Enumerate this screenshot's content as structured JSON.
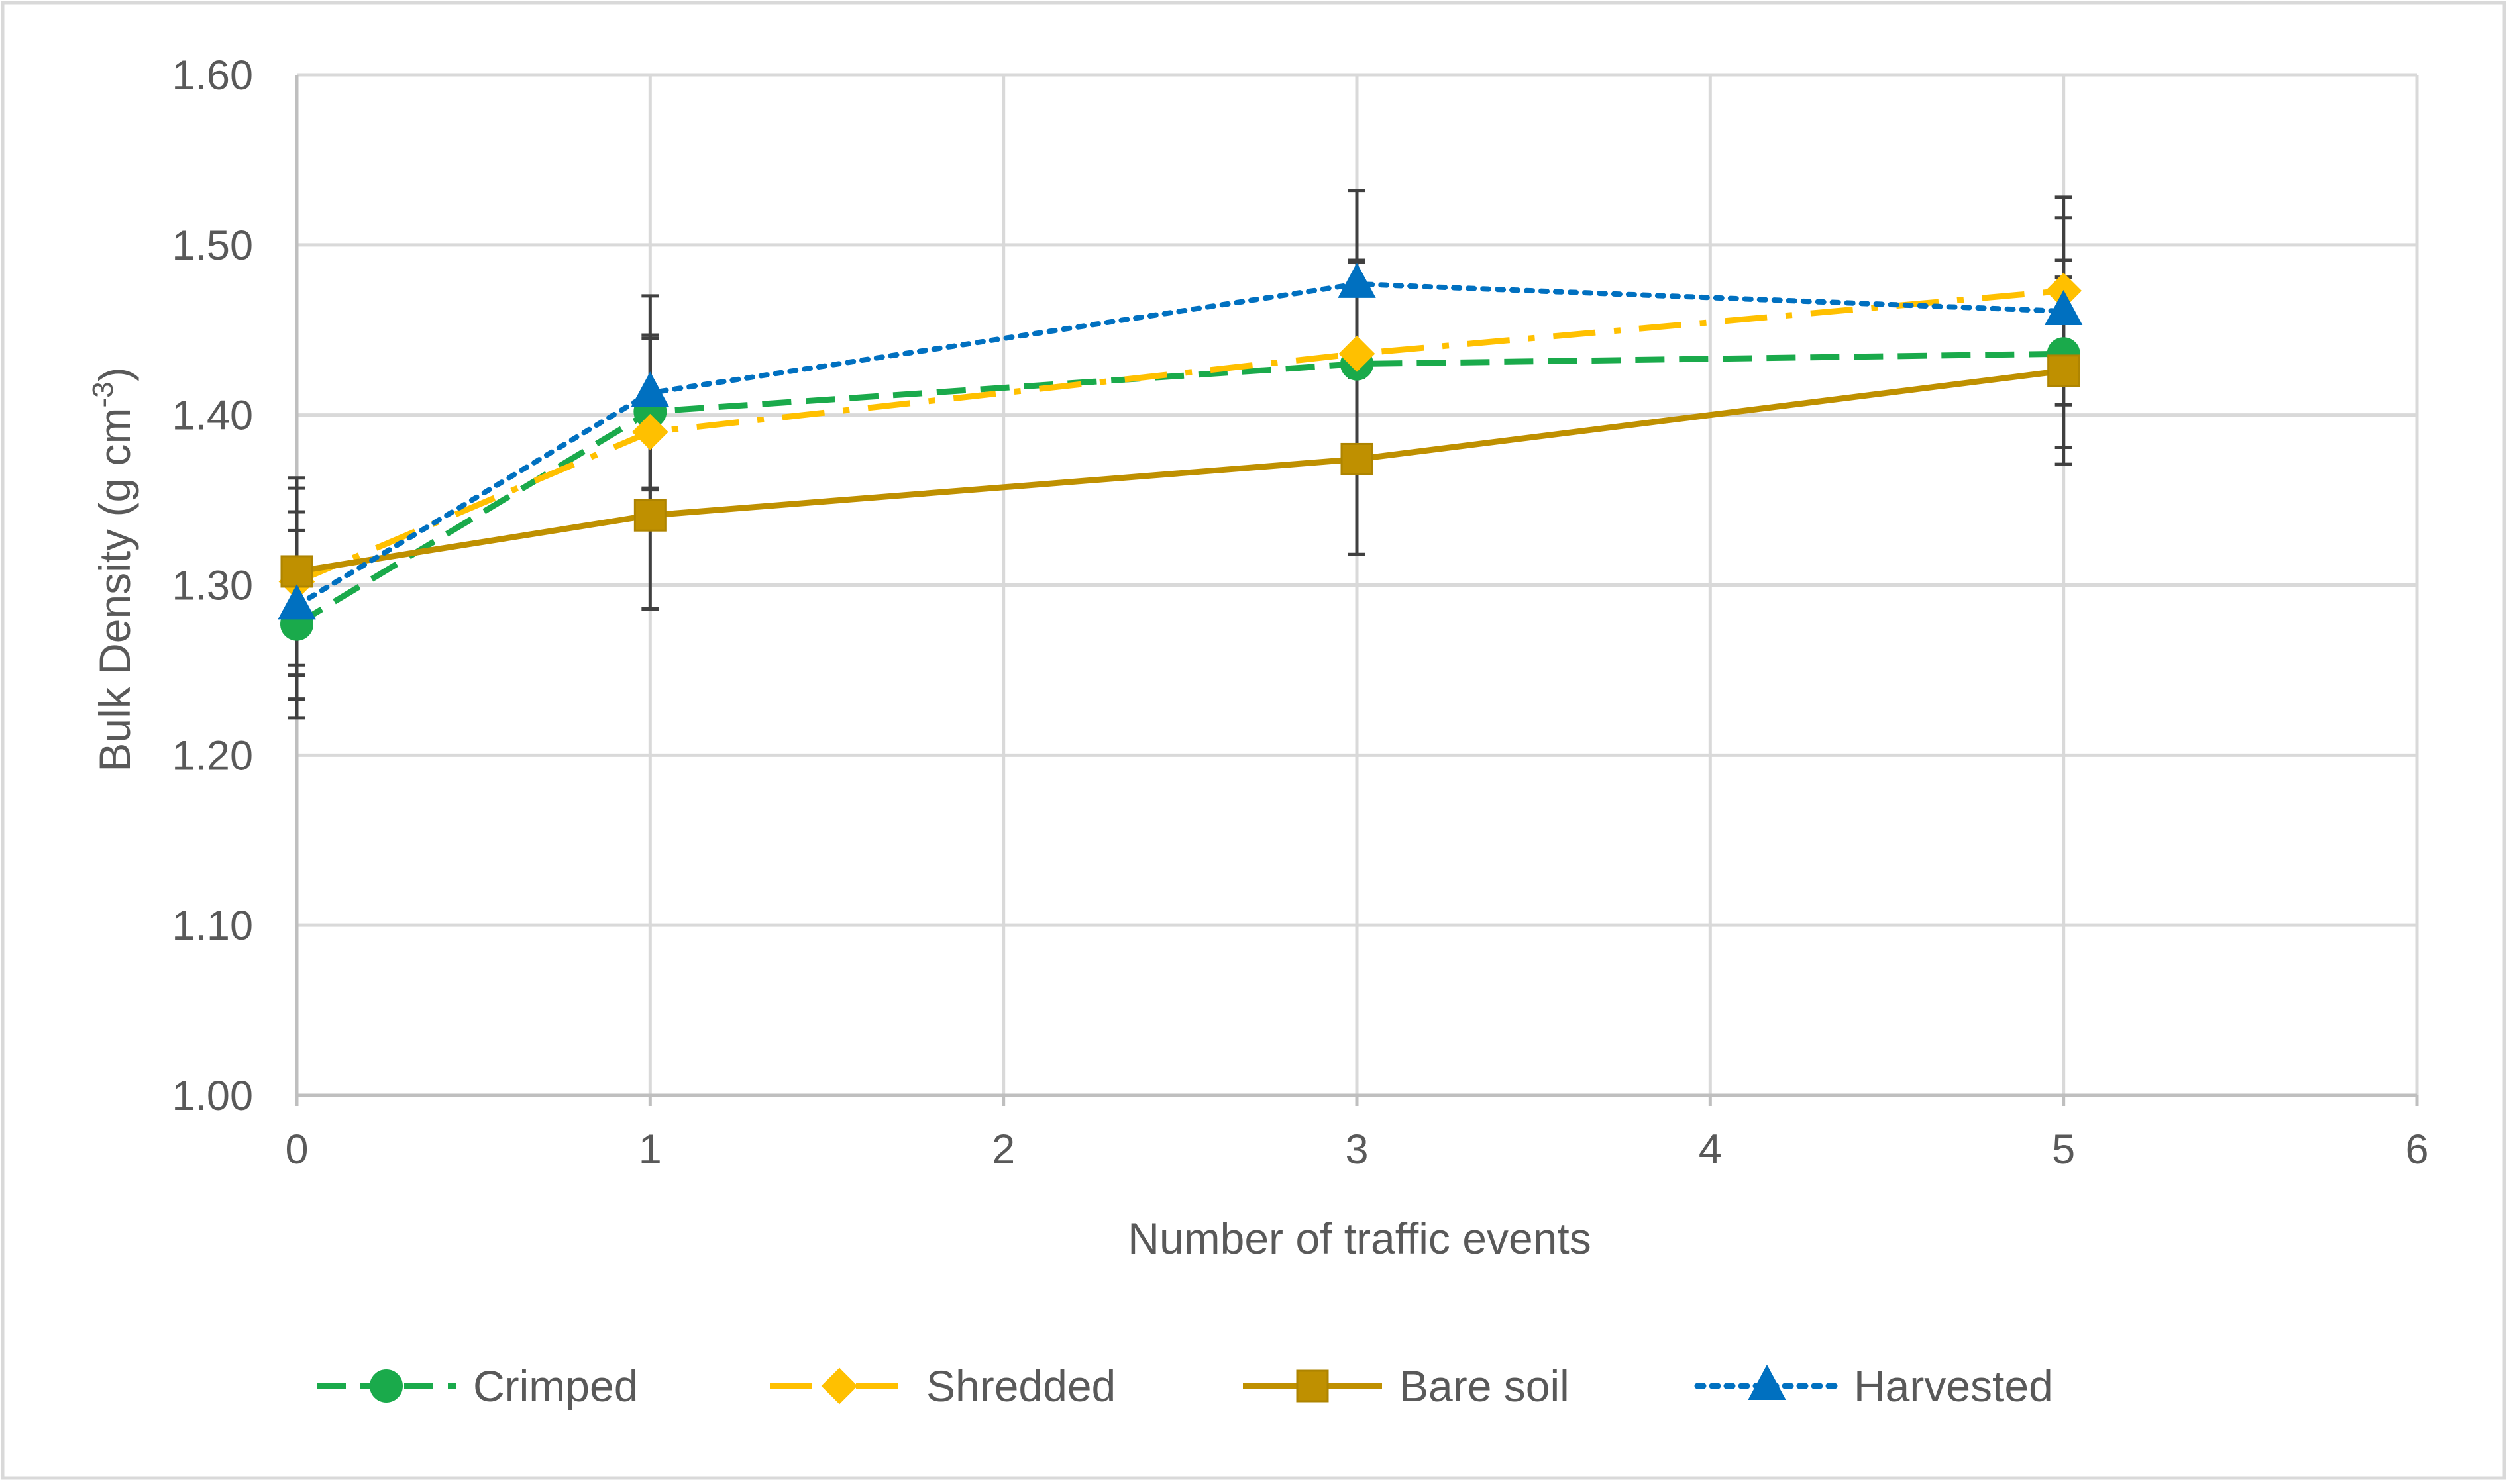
{
  "chart_data": {
    "type": "line",
    "title": "",
    "xlabel": "Number of traffic events",
    "ylabel_parts": {
      "main": "Bulk Density (g cm",
      "sup": "-3",
      "close": ")"
    },
    "xlim": [
      0,
      6
    ],
    "ylim": [
      1.0,
      1.6
    ],
    "x_ticks": [
      0,
      1,
      2,
      3,
      4,
      5,
      6
    ],
    "y_ticks": [
      1.0,
      1.1,
      1.2,
      1.3,
      1.4,
      1.5,
      1.6
    ],
    "x_tick_labels": [
      "0",
      "1",
      "2",
      "3",
      "4",
      "5",
      "6"
    ],
    "y_tick_labels": [
      "1.00",
      "1.10",
      "1.20",
      "1.30",
      "1.40",
      "1.50",
      "1.60"
    ],
    "grid": true,
    "legend_position": "bottom",
    "x": [
      0,
      1,
      3,
      5
    ],
    "series": [
      {
        "name": "Crimped",
        "values": [
          1.277,
          1.402,
          1.43,
          1.436
        ],
        "errors": [
          0.055,
          0.045,
          0.06,
          0.055
        ],
        "color": "#1AAA4B",
        "marker": "circle",
        "dash": "dashed"
      },
      {
        "name": "Shredded",
        "values": [
          1.302,
          1.39,
          1.436,
          1.473
        ],
        "errors": [
          0.055,
          0.055,
          0.055,
          0.055
        ],
        "color": "#FFC000",
        "marker": "diamond",
        "dash": "dashdot"
      },
      {
        "name": "Bare soil",
        "values": [
          1.308,
          1.341,
          1.374,
          1.426
        ],
        "errors": [
          0.055,
          0.055,
          0.056,
          0.055
        ],
        "color": "#BF9000",
        "marker": "square",
        "dash": "solid"
      },
      {
        "name": "Harvested",
        "values": [
          1.288,
          1.413,
          1.477,
          1.461
        ],
        "errors": [
          0.055,
          0.057,
          0.055,
          0.055
        ],
        "color": "#0070C0",
        "marker": "triangle",
        "dash": "dotted"
      }
    ],
    "error_bar_color": "#404040"
  }
}
